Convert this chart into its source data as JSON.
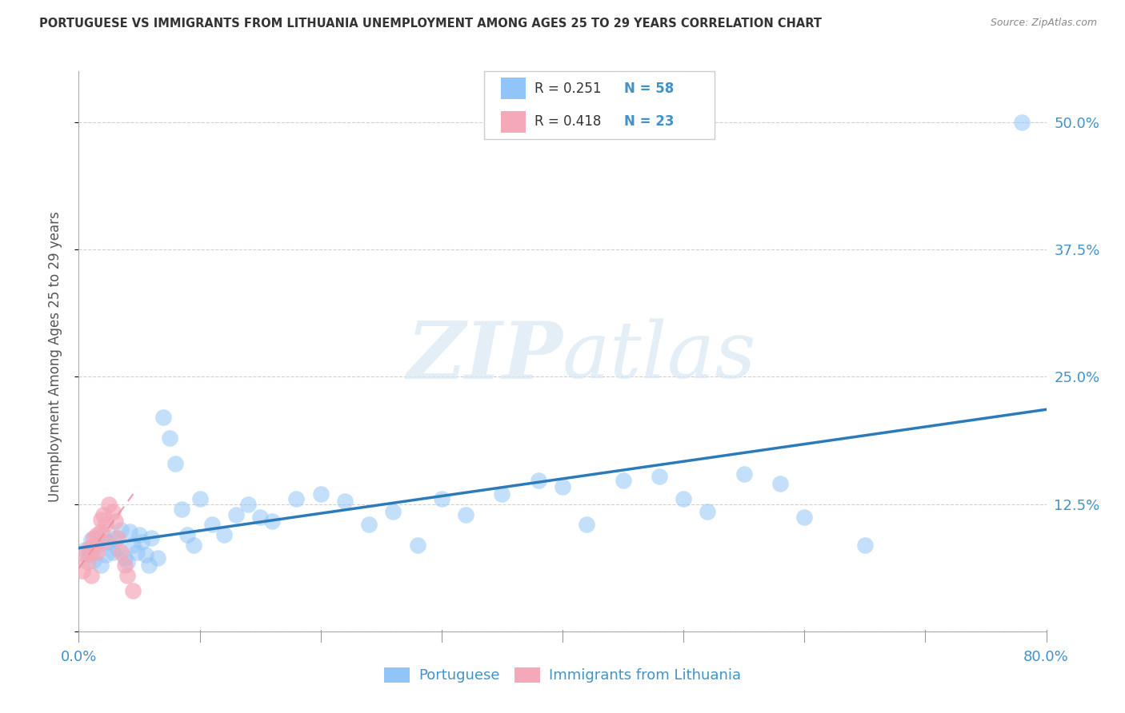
{
  "title": "PORTUGUESE VS IMMIGRANTS FROM LITHUANIA UNEMPLOYMENT AMONG AGES 25 TO 29 YEARS CORRELATION CHART",
  "source": "Source: ZipAtlas.com",
  "ylabel": "Unemployment Among Ages 25 to 29 years",
  "xlim": [
    0.0,
    0.8
  ],
  "ylim": [
    -0.01,
    0.55
  ],
  "y_ticks_right": [
    0.0,
    0.125,
    0.25,
    0.375,
    0.5
  ],
  "y_tick_labels_right": [
    "",
    "12.5%",
    "25.0%",
    "37.5%",
    "50.0%"
  ],
  "grid_color": "#d0d0d0",
  "background_color": "#ffffff",
  "watermark_zip": "ZIP",
  "watermark_atlas": "atlas",
  "legend_R1": "R = 0.251",
  "legend_N1": "N = 58",
  "legend_R2": "R = 0.418",
  "legend_N2": "N = 23",
  "legend_label1": "Portuguese",
  "legend_label2": "Immigrants from Lithuania",
  "blue_color": "#92c5f7",
  "pink_color": "#f4a8b8",
  "blue_line_color": "#2b7bba",
  "pink_line_color": "#e8909f",
  "title_color": "#333333",
  "label_color": "#4292c6",
  "portuguese_x": [
    0.005,
    0.008,
    0.01,
    0.012,
    0.015,
    0.018,
    0.02,
    0.022,
    0.025,
    0.028,
    0.03,
    0.032,
    0.035,
    0.038,
    0.04,
    0.042,
    0.045,
    0.048,
    0.05,
    0.052,
    0.055,
    0.058,
    0.06,
    0.065,
    0.07,
    0.075,
    0.08,
    0.085,
    0.09,
    0.095,
    0.1,
    0.11,
    0.12,
    0.13,
    0.14,
    0.15,
    0.16,
    0.18,
    0.2,
    0.22,
    0.24,
    0.26,
    0.28,
    0.3,
    0.32,
    0.35,
    0.38,
    0.4,
    0.42,
    0.45,
    0.48,
    0.5,
    0.52,
    0.55,
    0.58,
    0.6,
    0.65,
    0.78
  ],
  "portuguese_y": [
    0.08,
    0.075,
    0.09,
    0.07,
    0.085,
    0.065,
    0.095,
    0.075,
    0.088,
    0.078,
    0.092,
    0.082,
    0.1,
    0.072,
    0.068,
    0.098,
    0.085,
    0.078,
    0.095,
    0.088,
    0.075,
    0.065,
    0.092,
    0.072,
    0.21,
    0.19,
    0.165,
    0.12,
    0.095,
    0.085,
    0.13,
    0.105,
    0.095,
    0.115,
    0.125,
    0.112,
    0.108,
    0.13,
    0.135,
    0.128,
    0.105,
    0.118,
    0.085,
    0.13,
    0.115,
    0.135,
    0.148,
    0.142,
    0.105,
    0.148,
    0.152,
    0.13,
    0.118,
    0.155,
    0.145,
    0.112,
    0.085,
    0.5
  ],
  "lithuania_x": [
    0.003,
    0.005,
    0.007,
    0.008,
    0.01,
    0.01,
    0.012,
    0.013,
    0.015,
    0.015,
    0.018,
    0.018,
    0.02,
    0.02,
    0.022,
    0.025,
    0.028,
    0.03,
    0.032,
    0.035,
    0.038,
    0.04,
    0.045
  ],
  "lithuania_y": [
    0.06,
    0.075,
    0.068,
    0.082,
    0.078,
    0.055,
    0.092,
    0.085,
    0.095,
    0.078,
    0.11,
    0.098,
    0.088,
    0.115,
    0.105,
    0.125,
    0.118,
    0.108,
    0.092,
    0.078,
    0.065,
    0.055,
    0.04
  ],
  "blue_trendline_x": [
    0.0,
    0.8
  ],
  "blue_trendline_y": [
    0.082,
    0.218
  ],
  "pink_trendline_x": [
    0.0,
    0.045
  ],
  "pink_trendline_y": [
    0.062,
    0.135
  ]
}
